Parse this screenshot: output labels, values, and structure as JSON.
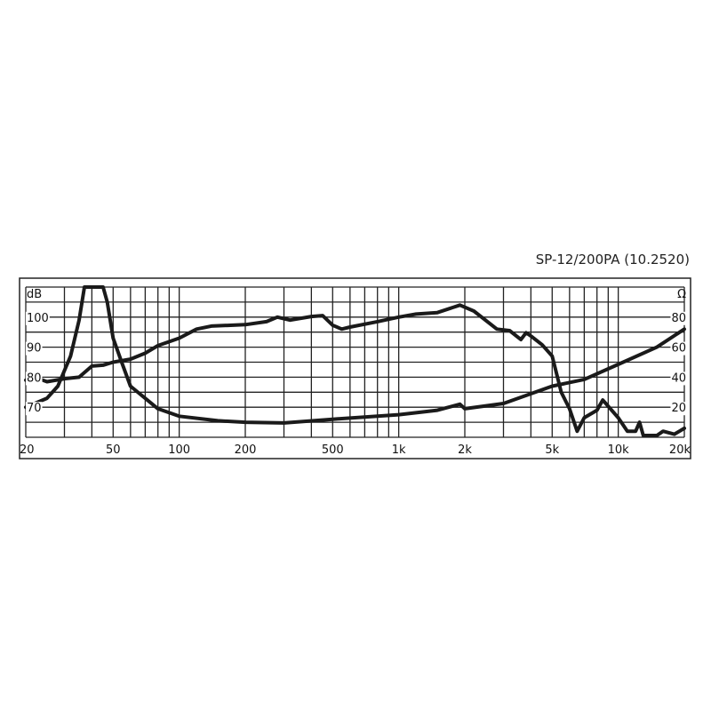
{
  "chart_data": {
    "type": "line",
    "title": "SP-12/200PA (10.2520)",
    "x_scale": "log",
    "xlim": [
      20,
      20000
    ],
    "x_ticks": [
      {
        "value": 20,
        "label": "20"
      },
      {
        "value": 50,
        "label": "50"
      },
      {
        "value": 100,
        "label": "100"
      },
      {
        "value": 200,
        "label": "200"
      },
      {
        "value": 500,
        "label": "500"
      },
      {
        "value": 1000,
        "label": "1k"
      },
      {
        "value": 2000,
        "label": "2k"
      },
      {
        "value": 5000,
        "label": "5k"
      },
      {
        "value": 10000,
        "label": "10k"
      },
      {
        "value": 20000,
        "label": "20k"
      }
    ],
    "y_left": {
      "unit": "dB",
      "range": [
        60,
        110
      ],
      "ticks": [
        {
          "value": 100,
          "label": "100"
        },
        {
          "value": 90,
          "label": "90"
        },
        {
          "value": 80,
          "label": "80"
        },
        {
          "value": 70,
          "label": "70"
        }
      ]
    },
    "y_right": {
      "unit": "Ω",
      "range": [
        0,
        100
      ],
      "ticks": [
        {
          "value": 80,
          "label": "80"
        },
        {
          "value": 60,
          "label": "60"
        },
        {
          "value": 40,
          "label": "40"
        },
        {
          "value": 20,
          "label": "20"
        }
      ]
    },
    "grid": true,
    "line_color": "#1a1a1a",
    "series": [
      {
        "axis": "left",
        "x": [
          20,
          22,
          25,
          30,
          35,
          40,
          45,
          50,
          60,
          70,
          80,
          100,
          120,
          140,
          200,
          250,
          280,
          320,
          400,
          450,
          500,
          550,
          600,
          800,
          1000,
          1200,
          1500,
          1900,
          2200,
          2800,
          3200,
          3600,
          3800,
          4000,
          4500,
          5000,
          5500,
          6000,
          6500,
          7000,
          8000,
          8500,
          10000,
          11000,
          12000,
          12500,
          13000,
          15000,
          16000,
          18000,
          20000
        ],
        "y": [
          79,
          80,
          78.5,
          79.5,
          80,
          83.7,
          84,
          85,
          86,
          88,
          90.5,
          93,
          96,
          97,
          97.5,
          98.5,
          100,
          99,
          100.2,
          100.5,
          97.3,
          96,
          96.7,
          98.5,
          100,
          101,
          101.5,
          104,
          102,
          96,
          95.5,
          92.5,
          94.8,
          93.7,
          90.8,
          87,
          75,
          69.5,
          62,
          66.5,
          69,
          72.4,
          66.5,
          62,
          62,
          65,
          60.6,
          60.6,
          62,
          61,
          63
        ]
      },
      {
        "axis": "right",
        "x": [
          20,
          25,
          28,
          32,
          35,
          37,
          45,
          47,
          50,
          55,
          60,
          80,
          100,
          150,
          200,
          300,
          500,
          1000,
          1500,
          1900,
          2000,
          3000,
          5000,
          7000,
          10000,
          15000,
          20000
        ],
        "y": [
          20,
          26,
          34,
          54,
          78,
          100,
          100,
          90,
          66,
          49,
          34,
          19,
          14,
          11,
          10,
          9.5,
          12,
          15,
          18,
          22,
          19,
          22.5,
          34,
          38.5,
          48.5,
          60,
          72
        ]
      }
    ]
  }
}
